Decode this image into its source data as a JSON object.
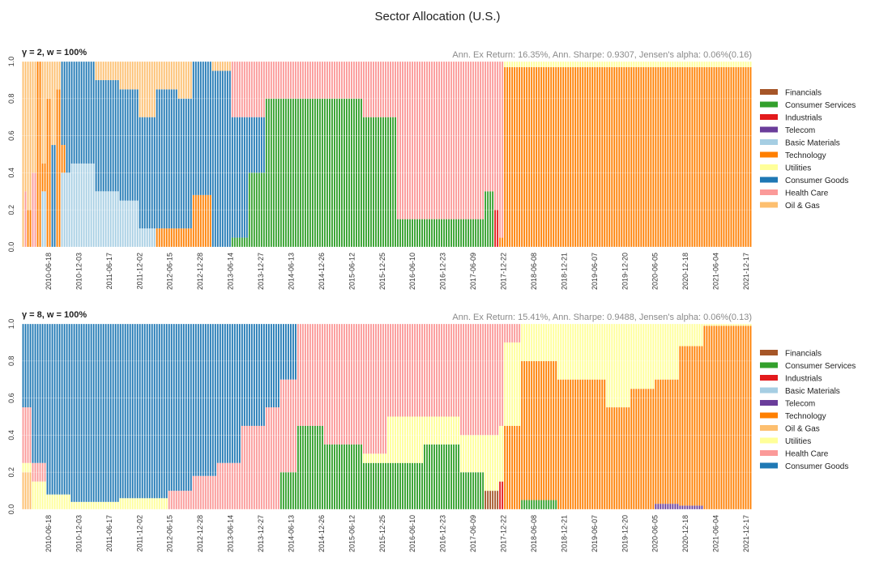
{
  "figure_title": "Sector Allocation (U.S.)",
  "colors": {
    "Financials": "#a65628",
    "Consumer Services": "#33a02c",
    "Industrials": "#e31a1c",
    "Telecom": "#6a3d9a",
    "Basic Materials": "#a6cee3",
    "Technology": "#ff7f00",
    "Utilities": "#ffff99",
    "Consumer Goods": "#1f78b4",
    "Health Care": "#fb9a99",
    "Oil & Gas": "#fdbf6f"
  },
  "chart_data": [
    {
      "type": "bar",
      "stacked": true,
      "title": "γ = 2, w = 100%",
      "stats": "Ann. Ex Return: 16.35%, Ann. Sharpe: 0.9307, Jensen's alpha: 0.06%(0.16)",
      "ylim": [
        0,
        1
      ],
      "yticks": [
        "0.0",
        "0.2",
        "0.4",
        "0.6",
        "0.8",
        "1.0"
      ],
      "xtick_labels": [
        "2010-06-18",
        "2010-12-03",
        "2011-06-17",
        "2011-12-02",
        "2012-06-15",
        "2012-12-28",
        "2013-06-14",
        "2013-12-27",
        "2014-06-13",
        "2014-12-26",
        "2015-06-12",
        "2015-12-25",
        "2016-06-10",
        "2016-12-23",
        "2017-06-09",
        "2017-12-22",
        "2018-06-08",
        "2018-12-21",
        "2019-06-07",
        "2019-12-20",
        "2020-06-05",
        "2020-12-18",
        "2021-06-04",
        "2021-12-17"
      ],
      "legend": [
        "Financials",
        "Consumer Services",
        "Industrials",
        "Telecom",
        "Basic Materials",
        "Technology",
        "Utilities",
        "Consumer Goods",
        "Health Care",
        "Oil & Gas"
      ],
      "legend_position": "right",
      "n_periods": 300,
      "segments": [
        {
          "end": 1,
          "mix": {
            "Oil & Gas": 1
          }
        },
        {
          "end": 2,
          "mix": {
            "Oil & Gas": 0.7,
            "Health Care": 0.3
          }
        },
        {
          "end": 4,
          "mix": {
            "Oil & Gas": 0.8,
            "Technology": 0.2
          }
        },
        {
          "end": 6,
          "mix": {
            "Oil & Gas": 0.6,
            "Health Care": 0.4
          }
        },
        {
          "end": 8,
          "mix": {
            "Technology": 1
          }
        },
        {
          "end": 10,
          "mix": {
            "Oil & Gas": 0.55,
            "Basic Materials": 0.3,
            "Technology": 0.15
          }
        },
        {
          "end": 12,
          "mix": {
            "Technology": 0.8,
            "Oil & Gas": 0.2
          }
        },
        {
          "end": 14,
          "mix": {
            "Consumer Goods": 0.55,
            "Oil & Gas": 0.45
          }
        },
        {
          "end": 16,
          "mix": {
            "Technology": 0.85,
            "Oil & Gas": 0.15
          }
        },
        {
          "end": 18,
          "mix": {
            "Consumer Goods": 0.45,
            "Basic Materials": 0.4,
            "Technology": 0.15
          }
        },
        {
          "end": 20,
          "mix": {
            "Consumer Goods": 0.6,
            "Basic Materials": 0.4
          }
        },
        {
          "end": 30,
          "mix": {
            "Consumer Goods": 0.55,
            "Basic Materials": 0.45
          }
        },
        {
          "end": 40,
          "mix": {
            "Consumer Goods": 0.6,
            "Basic Materials": 0.3,
            "Oil & Gas": 0.1
          }
        },
        {
          "end": 48,
          "mix": {
            "Consumer Goods": 0.6,
            "Basic Materials": 0.25,
            "Oil & Gas": 0.15
          }
        },
        {
          "end": 55,
          "mix": {
            "Consumer Goods": 0.6,
            "Oil & Gas": 0.3,
            "Basic Materials": 0.1
          }
        },
        {
          "end": 64,
          "mix": {
            "Consumer Goods": 0.75,
            "Oil & Gas": 0.15,
            "Technology": 0.1
          }
        },
        {
          "end": 70,
          "mix": {
            "Consumer Goods": 0.7,
            "Oil & Gas": 0.2,
            "Technology": 0.1
          }
        },
        {
          "end": 78,
          "mix": {
            "Consumer Goods": 0.72,
            "Technology": 0.28
          }
        },
        {
          "end": 86,
          "mix": {
            "Consumer Goods": 0.95,
            "Oil & Gas": 0.05
          }
        },
        {
          "end": 93,
          "mix": {
            "Consumer Goods": 0.65,
            "Health Care": 0.3,
            "Consumer Services": 0.05
          }
        },
        {
          "end": 100,
          "mix": {
            "Health Care": 0.3,
            "Consumer Goods": 0.3,
            "Consumer Services": 0.4
          }
        },
        {
          "end": 140,
          "mix": {
            "Consumer Services": 0.8,
            "Health Care": 0.2
          }
        },
        {
          "end": 154,
          "mix": {
            "Health Care": 0.3,
            "Consumer Services": 0.7
          }
        },
        {
          "end": 190,
          "mix": {
            "Health Care": 0.85,
            "Consumer Services": 0.15
          }
        },
        {
          "end": 194,
          "mix": {
            "Health Care": 0.7,
            "Consumer Services": 0.3
          }
        },
        {
          "end": 196,
          "mix": {
            "Health Care": 0.8,
            "Industrials": 0.2
          }
        },
        {
          "end": 198,
          "mix": {
            "Health Care": 0.95,
            "Technology": 0.05
          }
        },
        {
          "end": 300,
          "mix": {
            "Technology": 0.97,
            "Utilities": 0.03
          }
        }
      ]
    },
    {
      "type": "bar",
      "stacked": true,
      "title": "γ = 8, w = 100%",
      "stats": "Ann. Ex Return: 15.41%, Ann. Sharpe: 0.9488, Jensen's alpha: 0.06%(0.13)",
      "ylim": [
        0,
        1
      ],
      "yticks": [
        "0.0",
        "0.2",
        "0.4",
        "0.6",
        "0.8",
        "1.0"
      ],
      "xtick_labels": [
        "2010-06-18",
        "2010-12-03",
        "2011-06-17",
        "2011-12-02",
        "2012-06-15",
        "2012-12-28",
        "2013-06-14",
        "2013-12-27",
        "2014-06-13",
        "2014-12-26",
        "2015-06-12",
        "2015-12-25",
        "2016-06-10",
        "2016-12-23",
        "2017-06-09",
        "2017-12-22",
        "2018-06-08",
        "2018-12-21",
        "2019-06-07",
        "2019-12-20",
        "2020-06-05",
        "2020-12-18",
        "2021-06-04",
        "2021-12-17"
      ],
      "legend": [
        "Financials",
        "Consumer Services",
        "Industrials",
        "Basic Materials",
        "Telecom",
        "Technology",
        "Oil & Gas",
        "Utilities",
        "Health Care",
        "Consumer Goods"
      ],
      "legend_position": "right",
      "n_periods": 300,
      "segments": [
        {
          "end": 4,
          "mix": {
            "Oil & Gas": 0.2,
            "Utilities": 0.05,
            "Health Care": 0.3,
            "Consumer Goods": 0.45
          }
        },
        {
          "end": 10,
          "mix": {
            "Utilities": 0.15,
            "Health Care": 0.1,
            "Consumer Goods": 0.75
          }
        },
        {
          "end": 20,
          "mix": {
            "Utilities": 0.08,
            "Consumer Goods": 0.92
          }
        },
        {
          "end": 40,
          "mix": {
            "Utilities": 0.04,
            "Consumer Goods": 0.96
          }
        },
        {
          "end": 60,
          "mix": {
            "Utilities": 0.06,
            "Consumer Goods": 0.94
          }
        },
        {
          "end": 70,
          "mix": {
            "Health Care": 0.1,
            "Consumer Goods": 0.9
          }
        },
        {
          "end": 80,
          "mix": {
            "Health Care": 0.18,
            "Consumer Goods": 0.82
          }
        },
        {
          "end": 90,
          "mix": {
            "Health Care": 0.25,
            "Consumer Goods": 0.75
          }
        },
        {
          "end": 100,
          "mix": {
            "Health Care": 0.45,
            "Consumer Goods": 0.55
          }
        },
        {
          "end": 106,
          "mix": {
            "Health Care": 0.55,
            "Consumer Goods": 0.45
          }
        },
        {
          "end": 113,
          "mix": {
            "Consumer Services": 0.2,
            "Health Care": 0.5,
            "Consumer Goods": 0.3
          }
        },
        {
          "end": 124,
          "mix": {
            "Consumer Services": 0.45,
            "Health Care": 0.55
          }
        },
        {
          "end": 140,
          "mix": {
            "Consumer Services": 0.35,
            "Health Care": 0.65
          }
        },
        {
          "end": 150,
          "mix": {
            "Consumer Services": 0.25,
            "Utilities": 0.05,
            "Health Care": 0.7
          }
        },
        {
          "end": 165,
          "mix": {
            "Consumer Services": 0.25,
            "Utilities": 0.25,
            "Health Care": 0.5
          }
        },
        {
          "end": 180,
          "mix": {
            "Consumer Services": 0.35,
            "Utilities": 0.15,
            "Health Care": 0.5
          }
        },
        {
          "end": 190,
          "mix": {
            "Consumer Services": 0.2,
            "Utilities": 0.2,
            "Health Care": 0.6
          }
        },
        {
          "end": 196,
          "mix": {
            "Financials": 0.1,
            "Utilities": 0.3,
            "Health Care": 0.6
          }
        },
        {
          "end": 198,
          "mix": {
            "Industrials": 0.15,
            "Utilities": 0.3,
            "Health Care": 0.55
          }
        },
        {
          "end": 205,
          "mix": {
            "Utilities": 0.45,
            "Health Care": 0.1,
            "Technology": 0.45
          }
        },
        {
          "end": 220,
          "mix": {
            "Consumer Services": 0.05,
            "Utilities": 0.2,
            "Technology": 0.75
          }
        },
        {
          "end": 240,
          "mix": {
            "Utilities": 0.3,
            "Technology": 0.7
          }
        },
        {
          "end": 250,
          "mix": {
            "Utilities": 0.45,
            "Technology": 0.55
          }
        },
        {
          "end": 260,
          "mix": {
            "Utilities": 0.35,
            "Technology": 0.65
          }
        },
        {
          "end": 270,
          "mix": {
            "Telecom": 0.03,
            "Utilities": 0.3,
            "Technology": 0.67
          }
        },
        {
          "end": 280,
          "mix": {
            "Telecom": 0.02,
            "Utilities": 0.12,
            "Technology": 0.86
          }
        },
        {
          "end": 300,
          "mix": {
            "Utilities": 0.01,
            "Technology": 0.99
          }
        }
      ]
    }
  ]
}
